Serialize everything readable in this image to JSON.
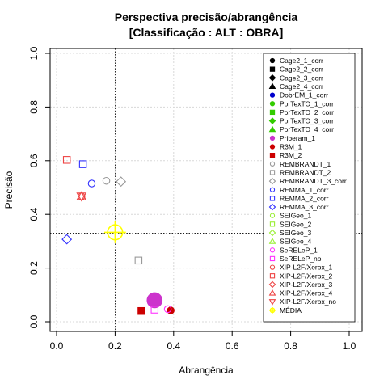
{
  "chart_data": {
    "type": "scatter",
    "title_line1": "Perspectiva precisão/abrangência",
    "title_line2": "[Classificação : ALT : OBRA]",
    "xlabel": "Abrangência",
    "ylabel": "Precisão",
    "xlim": [
      0,
      1
    ],
    "ylim": [
      0,
      1
    ],
    "x_ticks": [
      "0.0",
      "0.2",
      "0.4",
      "0.6",
      "0.8",
      "1.0"
    ],
    "y_ticks": [
      "0.0",
      "0.2",
      "0.4",
      "0.6",
      "0.8",
      "1.0"
    ],
    "grid": true,
    "reference_lines": {
      "x": 0.2,
      "y": 0.33
    },
    "legend_position": "right",
    "series": [
      {
        "name": "Cage2_1_corr",
        "color": "#000000",
        "shape": "circle-filled",
        "points": []
      },
      {
        "name": "Cage2_2_corr",
        "color": "#000000",
        "shape": "square-filled",
        "points": []
      },
      {
        "name": "Cage2_3_corr",
        "color": "#000000",
        "shape": "diamond-filled",
        "points": []
      },
      {
        "name": "Cage2_4_corr",
        "color": "#000000",
        "shape": "triangle-filled",
        "points": []
      },
      {
        "name": "DobrEM_1_corr",
        "color": "#0000cc",
        "shape": "circle-filled",
        "points": []
      },
      {
        "name": "PorTexTO_1_corr",
        "color": "#33cc00",
        "shape": "circle-filled",
        "points": []
      },
      {
        "name": "PorTexTO_2_corr",
        "color": "#33cc00",
        "shape": "square-filled",
        "points": []
      },
      {
        "name": "PorTexTO_3_corr",
        "color": "#33cc00",
        "shape": "diamond-filled",
        "points": []
      },
      {
        "name": "PorTexTO_4_corr",
        "color": "#33cc00",
        "shape": "triangle-filled",
        "points": []
      },
      {
        "name": "Priberam_1",
        "color": "#cc33cc",
        "shape": "circle-filled",
        "points": [
          {
            "x": 0.335,
            "y": 0.08,
            "size": 2.2
          }
        ]
      },
      {
        "name": "R3M_1",
        "color": "#cc0000",
        "shape": "circle-filled",
        "points": [
          {
            "x": 0.39,
            "y": 0.042,
            "size": 1
          }
        ]
      },
      {
        "name": "R3M_2",
        "color": "#cc0000",
        "shape": "square-filled",
        "points": [
          {
            "x": 0.29,
            "y": 0.04,
            "size": 1
          }
        ]
      },
      {
        "name": "REMBRANDT_1",
        "color": "#999999",
        "shape": "circle-open",
        "points": [
          {
            "x": 0.17,
            "y": 0.525,
            "size": 1
          }
        ]
      },
      {
        "name": "REMBRANDT_2",
        "color": "#999999",
        "shape": "square-open",
        "points": [
          {
            "x": 0.28,
            "y": 0.228,
            "size": 1
          }
        ]
      },
      {
        "name": "REMBRANDT_3_corr",
        "color": "#999999",
        "shape": "diamond-open",
        "points": [
          {
            "x": 0.22,
            "y": 0.522,
            "size": 1
          }
        ]
      },
      {
        "name": "REMMA_1_corr",
        "color": "#3333ff",
        "shape": "circle-open",
        "points": [
          {
            "x": 0.12,
            "y": 0.515,
            "size": 1
          }
        ]
      },
      {
        "name": "REMMA_2_corr",
        "color": "#3333ff",
        "shape": "square-open",
        "points": [
          {
            "x": 0.09,
            "y": 0.587,
            "size": 1
          }
        ]
      },
      {
        "name": "REMMA_3_corr",
        "color": "#3333ff",
        "shape": "diamond-open",
        "points": [
          {
            "x": 0.035,
            "y": 0.307,
            "size": 1
          }
        ]
      },
      {
        "name": "SEIGeo_1",
        "color": "#99ee33",
        "shape": "circle-open",
        "points": []
      },
      {
        "name": "SEIGeo_2",
        "color": "#99ee33",
        "shape": "square-open",
        "points": []
      },
      {
        "name": "SEIGeo_3",
        "color": "#99ee33",
        "shape": "diamond-open",
        "points": []
      },
      {
        "name": "SEIGeo_4",
        "color": "#99ee33",
        "shape": "triangle-open",
        "points": []
      },
      {
        "name": "SeRELeP_1",
        "color": "#ff33ff",
        "shape": "circle-open",
        "points": [
          {
            "x": 0.38,
            "y": 0.047,
            "size": 1
          }
        ]
      },
      {
        "name": "SeRELeP_no",
        "color": "#ff33ff",
        "shape": "square-open",
        "points": [
          {
            "x": 0.335,
            "y": 0.045,
            "size": 1
          }
        ]
      },
      {
        "name": "XIP-L2F/Xerox_1",
        "color": "#ee4444",
        "shape": "circle-open",
        "points": [
          {
            "x": 0.085,
            "y": 0.467,
            "size": 1
          }
        ]
      },
      {
        "name": "XIP-L2F/Xerox_2",
        "color": "#ee4444",
        "shape": "square-open",
        "points": [
          {
            "x": 0.035,
            "y": 0.603,
            "size": 1
          }
        ]
      },
      {
        "name": "XIP-L2F/Xerox_3",
        "color": "#ee4444",
        "shape": "diamond-open",
        "points": []
      },
      {
        "name": "XIP-L2F/Xerox_4",
        "color": "#ee4444",
        "shape": "triangle-open",
        "points": [
          {
            "x": 0.085,
            "y": 0.467,
            "size": 1
          }
        ]
      },
      {
        "name": "XIP-L2F/Xerox_no",
        "color": "#ee4444",
        "shape": "triangle-down-open",
        "points": [
          {
            "x": 0.085,
            "y": 0.467,
            "size": 1
          }
        ]
      },
      {
        "name": "MÉDIA",
        "color": "#ffff00",
        "shape": "crosshair",
        "points": [
          {
            "x": 0.2,
            "y": 0.333,
            "size": 2.2
          }
        ]
      }
    ]
  }
}
